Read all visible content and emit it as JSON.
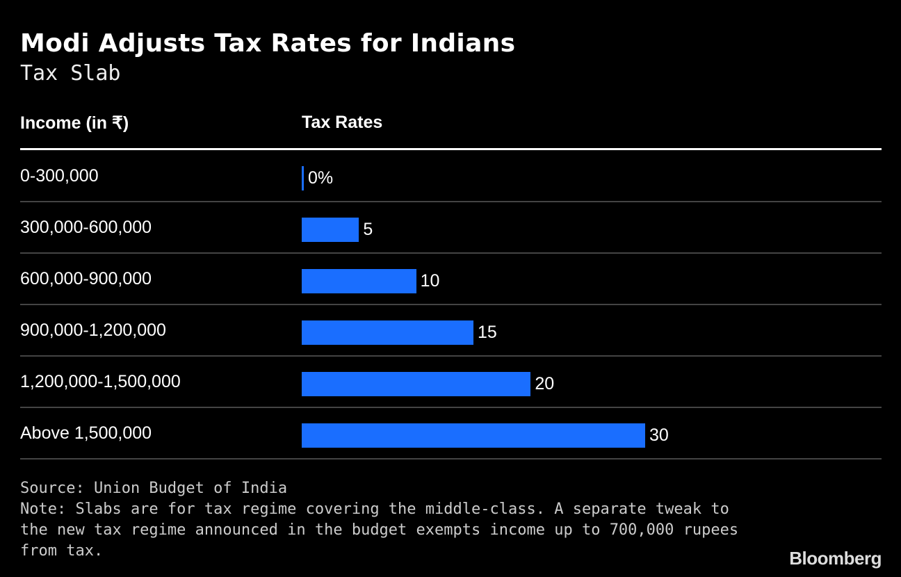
{
  "chart_data": {
    "type": "bar",
    "orientation": "horizontal",
    "title": "Modi Adjusts Tax Rates for Indians",
    "subtitle": "Tax Slab",
    "column_headers": [
      "Income (in ₹)",
      "Tax Rates"
    ],
    "categories": [
      "0-300,000",
      "300,000-600,000",
      "600,000-900,000",
      "900,000-1,200,000",
      "1,200,000-1,500,000",
      "Above 1,500,000"
    ],
    "values": [
      0,
      5,
      10,
      15,
      20,
      30
    ],
    "value_labels": [
      "0%",
      "5",
      "10",
      "15",
      "20",
      "30"
    ],
    "unit": "%",
    "xlim": [
      0,
      30
    ],
    "bar_color": "#1a6eff",
    "background": "#000000",
    "grid": false
  },
  "footer": {
    "source": "Source: Union Budget of India",
    "note": "Note: Slabs are for tax regime covering the middle-class. A separate tweak to the new tax regime announced in the budget exempts income up to 700,000 rupees from tax."
  },
  "logo": "Bloomberg"
}
